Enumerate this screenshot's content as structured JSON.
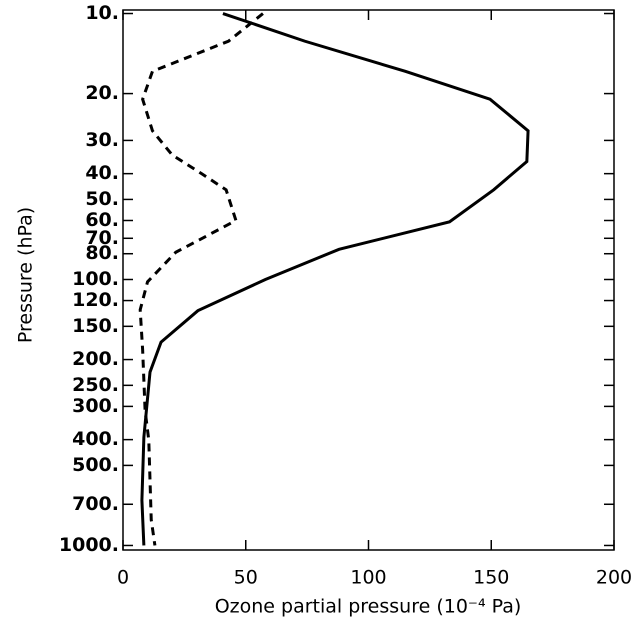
{
  "chart_data": {
    "type": "line",
    "xlabel": "Ozone partial pressure (10⁻⁴ Pa)",
    "ylabel": "Pressure (hPa)",
    "xlim": [
      0,
      200
    ],
    "xticks": [
      0,
      50,
      100,
      150,
      200
    ],
    "ylim": [
      9.7,
      1040
    ],
    "ylog": true,
    "yreverse": true,
    "yticks": [
      {
        "value": 10,
        "label": "10."
      },
      {
        "value": 20,
        "label": "20."
      },
      {
        "value": 30,
        "label": "30."
      },
      {
        "value": 40,
        "label": "40."
      },
      {
        "value": 50,
        "label": "50."
      },
      {
        "value": 60,
        "label": "60."
      },
      {
        "value": 70,
        "label": "70."
      },
      {
        "value": 80,
        "label": "80."
      },
      {
        "value": 100,
        "label": "100."
      },
      {
        "value": 120,
        "label": "120."
      },
      {
        "value": 150,
        "label": "150."
      },
      {
        "value": 200,
        "label": "200."
      },
      {
        "value": 250,
        "label": "250."
      },
      {
        "value": 300,
        "label": "300."
      },
      {
        "value": 400,
        "label": "400."
      },
      {
        "value": 500,
        "label": "500."
      },
      {
        "value": 700,
        "label": "700."
      },
      {
        "value": 1000,
        "label": "1000."
      }
    ],
    "series": [
      {
        "color": "#000000",
        "dashed": false,
        "x": [
          40.7,
          74,
          115,
          149.5,
          165,
          164.5,
          151,
          133,
          88,
          58,
          30.5,
          15.5,
          11,
          8.5,
          7.7,
          8.5
        ],
        "y": [
          10,
          12.7,
          16.5,
          21,
          27.6,
          36,
          46,
          60.7,
          77,
          100,
          131,
          172,
          223,
          392,
          676,
          1000
        ]
      },
      {
        "color": "#000000",
        "dashed": true,
        "x": [
          57,
          43,
          12,
          8,
          12,
          20,
          32,
          42,
          46,
          21.5,
          10,
          7,
          8,
          9,
          10.5,
          11.5,
          13
        ],
        "y": [
          10,
          12.7,
          16.5,
          21,
          27.6,
          34,
          40,
          46,
          60,
          79,
          102,
          130,
          184,
          311,
          402,
          800,
          1000
        ]
      }
    ]
  }
}
